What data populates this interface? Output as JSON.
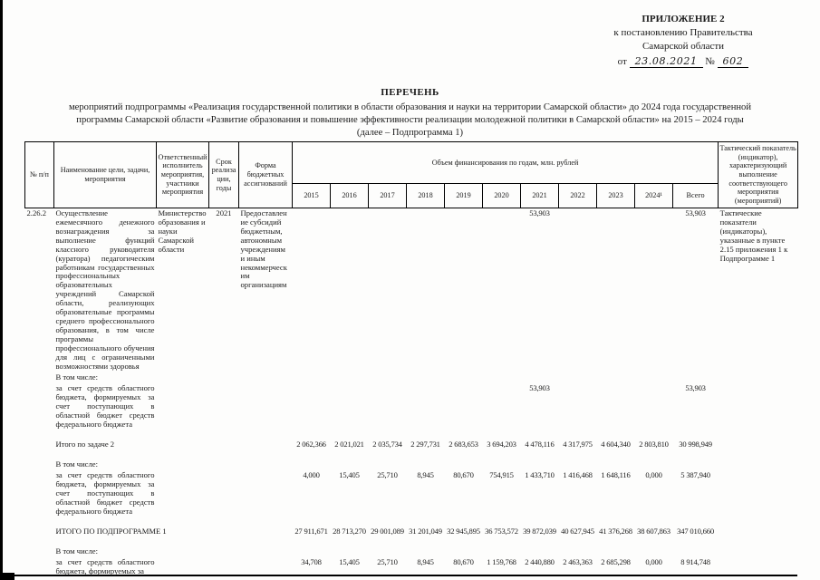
{
  "appendix": {
    "line1": "ПРИЛОЖЕНИЕ 2",
    "line2": "к постановлению Правительства",
    "line3": "Самарской области",
    "date_prefix": "от",
    "date": "23.08.2021",
    "number_sign": "№",
    "number": "602"
  },
  "title": {
    "heading": "ПЕРЕЧЕНЬ",
    "line1": "мероприятий подпрограммы «Реализация государственной политики в области образования и науки на территории Самарской области» до 2024 года государственной",
    "line2": "программы Самарской области «Развитие образования и повышение эффективности реализации молодежной политики в Самарской области» на 2015 – 2024 годы",
    "line3": "(далее – Подпрограмма 1)"
  },
  "table": {
    "headers": {
      "num": "№ п/п",
      "name": "Наименование цели, задачи, мероприятия",
      "responsible": "Ответственный исполнитель мероприятия, участники мероприятия",
      "term": "Срок реализации, годы",
      "form": "Форма бюджетных ассигнований",
      "funding": "Объем финансирования по годам, млн. рублей",
      "columns": [
        "2015",
        "2016",
        "2017",
        "2018",
        "2019",
        "2020",
        "2021",
        "2022",
        "2023",
        "2024¹",
        "Всего"
      ],
      "tactical": "Тактический показатель (индикатор), характеризующий выполнение соответствующего мероприятия (мероприятий)"
    },
    "rows": [
      {
        "type": "main",
        "id": "2.26.2",
        "name": "Осуществление ежемесячного денежного вознаграждения за выполнение функций классного руководителя (куратора) педагогическим работникам государственных профессиональных образовательных учреждений Самарской области, реализующих образовательные программы среднего профессионального образования, в том числе программы профессионального обучения для лиц с ограниченными возможностями здоровья",
        "resp": "Министерство образования и науки Самарской области",
        "term": "2021",
        "form": "Предоставление субсидий бюджетным, автономным учреждениям и иным некоммерческим организациям",
        "values": [
          "",
          "",
          "",
          "",
          "",
          "",
          "53,903",
          "",
          "",
          "",
          "53,903"
        ],
        "tactical": "Тактические показатели (индикаторы), указанные в пункте 2.15 приложения 1 к Подпрограмме 1"
      },
      {
        "type": "label",
        "name": "В том числе:"
      },
      {
        "type": "sub",
        "name": "за счет средств областного бюджета, формируемых за счет поступающих в областной бюджет средств федерального бюджета",
        "values": [
          "",
          "",
          "",
          "",
          "",
          "",
          "53,903",
          "",
          "",
          "",
          "53,903"
        ]
      },
      {
        "type": "total",
        "gap": true,
        "name": "Итого по задаче 2",
        "values": [
          "2 062,366",
          "2 021,021",
          "2 035,734",
          "2 297,731",
          "2 683,653",
          "3 694,203",
          "4 478,116",
          "4 317,975",
          "4 604,340",
          "2 803,810",
          "30 998,949"
        ]
      },
      {
        "type": "label",
        "gap": true,
        "name": "В том числе:"
      },
      {
        "type": "sub",
        "name": "за счет средств областного бюджета, формируемых за счет поступающих в областной бюджет средств федерального бюджета",
        "values": [
          "4,000",
          "15,405",
          "25,710",
          "8,945",
          "80,670",
          "754,915",
          "1 433,710",
          "1 416,468",
          "1 648,116",
          "0,000",
          "5 387,940"
        ]
      },
      {
        "type": "total",
        "gap": true,
        "name": "ИТОГО ПО ПОДПРОГРАММЕ 1",
        "values": [
          "27 911,671",
          "28 713,270",
          "29 001,089",
          "31 201,049",
          "32 945,895",
          "36 753,572",
          "39 872,039",
          "40 627,945",
          "41 376,268",
          "38 607,863",
          "347 010,660"
        ]
      },
      {
        "type": "label",
        "gap": true,
        "name": "В том числе:"
      },
      {
        "type": "sub",
        "name": "за счет средств областного бюджета, формируемых за",
        "values": [
          "34,708",
          "15,405",
          "25,710",
          "8,945",
          "80,670",
          "1 159,768",
          "2 440,880",
          "2 463,363",
          "2 685,298",
          "0,000",
          "8 914,748"
        ]
      }
    ]
  }
}
